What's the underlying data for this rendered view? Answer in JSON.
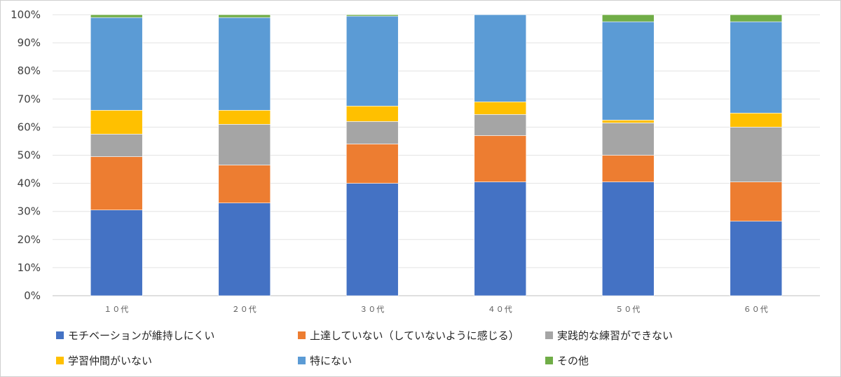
{
  "chart_data": {
    "type": "bar",
    "stacked": true,
    "percent_stacked": true,
    "categories": [
      "１０代",
      "２０代",
      "３０代",
      "４０代",
      "５０代",
      "６０代"
    ],
    "y_tick_labels": [
      "0%",
      "10%",
      "20%",
      "30%",
      "40%",
      "50%",
      "60%",
      "70%",
      "80%",
      "90%",
      "100%"
    ],
    "ylim": [
      0,
      100
    ],
    "grid": true,
    "legend_position": "bottom",
    "series": [
      {
        "name": "モチベーションが維持しにくい",
        "color": "#4472c4",
        "values": [
          30.5,
          33,
          40,
          40.5,
          40.5,
          26.5
        ]
      },
      {
        "name": "上達していない（していないように感じる）",
        "color": "#ed7d31",
        "values": [
          19,
          13.5,
          14,
          16.5,
          9.5,
          14
        ]
      },
      {
        "name": "実践的な練習ができない",
        "color": "#a5a5a5",
        "values": [
          8,
          14.5,
          8,
          7.5,
          11.5,
          19.5
        ]
      },
      {
        "name": "学習仲間がいない",
        "color": "#ffc000",
        "values": [
          8.5,
          5,
          5.5,
          4.5,
          1,
          5
        ]
      },
      {
        "name": "特にない",
        "color": "#5b9bd5",
        "values": [
          33,
          33,
          32,
          31,
          35,
          32.5
        ]
      },
      {
        "name": "その他",
        "color": "#70ad47",
        "values": [
          1,
          1,
          0.5,
          0,
          2.5,
          2.5
        ]
      }
    ]
  }
}
